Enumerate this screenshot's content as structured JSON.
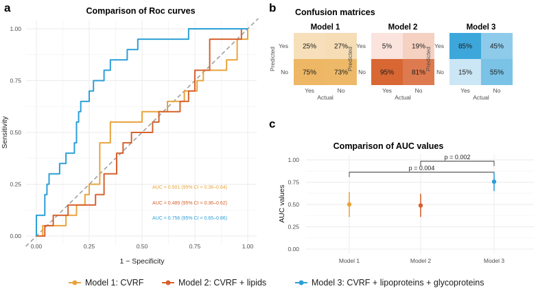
{
  "colors": {
    "model1": "#E8A33A",
    "model2": "#D6602B",
    "model3": "#2A9FD8",
    "diag": "#9e9e9e",
    "cm1": [
      "#FBF3E4",
      "#E8A33A"
    ],
    "cm2": [
      "#FCEBE6",
      "#D6602B"
    ],
    "cm3": [
      "#E9F3FA",
      "#1F9AD6"
    ]
  },
  "panel_letters": {
    "a": "a",
    "b": "b",
    "c": "c"
  },
  "legend": [
    {
      "key": "model1",
      "label": "Model 1: CVRF"
    },
    {
      "key": "model2",
      "label": "Model 2: CVRF + lipids"
    },
    {
      "key": "model3",
      "label": "Model 3: CVRF + lipoproteins + glycoproteins"
    }
  ],
  "chart_data": [
    {
      "type": "line",
      "title": "Comparison of Roc curves",
      "xlabel": "1 − Specificity",
      "ylabel": "Sensitivity",
      "xlim": [
        0,
        1
      ],
      "ylim": [
        0,
        1
      ],
      "xticks": [
        "0.00",
        "0.25",
        "0.50",
        "0.75",
        "1.00"
      ],
      "yticks": [
        "0.00",
        "0.25",
        "0.50",
        "0.75",
        "1.00"
      ],
      "diagonal": true,
      "series": [
        {
          "name": "Model 1",
          "color_key": "model1",
          "points": [
            [
              0,
              0
            ],
            [
              0.03,
              0
            ],
            [
              0.03,
              0.05
            ],
            [
              0.14,
              0.05
            ],
            [
              0.14,
              0.1
            ],
            [
              0.19,
              0.1
            ],
            [
              0.19,
              0.15
            ],
            [
              0.23,
              0.15
            ],
            [
              0.23,
              0.2
            ],
            [
              0.25,
              0.2
            ],
            [
              0.25,
              0.25
            ],
            [
              0.3,
              0.25
            ],
            [
              0.3,
              0.45
            ],
            [
              0.35,
              0.45
            ],
            [
              0.35,
              0.55
            ],
            [
              0.5,
              0.55
            ],
            [
              0.5,
              0.6
            ],
            [
              0.62,
              0.6
            ],
            [
              0.62,
              0.65
            ],
            [
              0.7,
              0.65
            ],
            [
              0.7,
              0.7
            ],
            [
              0.76,
              0.7
            ],
            [
              0.76,
              0.75
            ],
            [
              0.79,
              0.75
            ],
            [
              0.79,
              0.8
            ],
            [
              0.9,
              0.8
            ],
            [
              0.9,
              0.85
            ],
            [
              0.95,
              0.85
            ],
            [
              0.95,
              0.95
            ],
            [
              1.0,
              0.95
            ],
            [
              1.0,
              1.0
            ]
          ]
        },
        {
          "name": "Model 2",
          "color_key": "model2",
          "points": [
            [
              0,
              0
            ],
            [
              0.04,
              0
            ],
            [
              0.04,
              0.05
            ],
            [
              0.08,
              0.05
            ],
            [
              0.08,
              0.1
            ],
            [
              0.15,
              0.1
            ],
            [
              0.15,
              0.15
            ],
            [
              0.28,
              0.15
            ],
            [
              0.28,
              0.2
            ],
            [
              0.32,
              0.2
            ],
            [
              0.32,
              0.3
            ],
            [
              0.38,
              0.3
            ],
            [
              0.38,
              0.4
            ],
            [
              0.41,
              0.4
            ],
            [
              0.41,
              0.45
            ],
            [
              0.45,
              0.45
            ],
            [
              0.45,
              0.5
            ],
            [
              0.55,
              0.5
            ],
            [
              0.55,
              0.55
            ],
            [
              0.58,
              0.55
            ],
            [
              0.58,
              0.6
            ],
            [
              0.68,
              0.6
            ],
            [
              0.68,
              0.65
            ],
            [
              0.72,
              0.65
            ],
            [
              0.72,
              0.7
            ],
            [
              0.75,
              0.7
            ],
            [
              0.75,
              0.8
            ],
            [
              0.82,
              0.8
            ],
            [
              0.82,
              0.95
            ],
            [
              0.97,
              0.95
            ],
            [
              0.97,
              1.0
            ],
            [
              1.0,
              1.0
            ]
          ]
        },
        {
          "name": "Model 3",
          "color_key": "model3",
          "points": [
            [
              0,
              0
            ],
            [
              0,
              0.1
            ],
            [
              0.04,
              0.1
            ],
            [
              0.04,
              0.2
            ],
            [
              0.05,
              0.2
            ],
            [
              0.05,
              0.25
            ],
            [
              0.06,
              0.25
            ],
            [
              0.06,
              0.3
            ],
            [
              0.11,
              0.3
            ],
            [
              0.11,
              0.35
            ],
            [
              0.14,
              0.35
            ],
            [
              0.14,
              0.4
            ],
            [
              0.18,
              0.4
            ],
            [
              0.18,
              0.45
            ],
            [
              0.19,
              0.45
            ],
            [
              0.19,
              0.55
            ],
            [
              0.2,
              0.55
            ],
            [
              0.2,
              0.6
            ],
            [
              0.21,
              0.6
            ],
            [
              0.21,
              0.65
            ],
            [
              0.25,
              0.65
            ],
            [
              0.25,
              0.7
            ],
            [
              0.27,
              0.7
            ],
            [
              0.27,
              0.75
            ],
            [
              0.32,
              0.75
            ],
            [
              0.32,
              0.8
            ],
            [
              0.35,
              0.8
            ],
            [
              0.35,
              0.85
            ],
            [
              0.43,
              0.85
            ],
            [
              0.43,
              0.9
            ],
            [
              0.48,
              0.9
            ],
            [
              0.48,
              0.95
            ],
            [
              0.72,
              0.95
            ],
            [
              0.72,
              1.0
            ],
            [
              1.0,
              1.0
            ]
          ]
        }
      ],
      "annotations": [
        {
          "color_key": "model1",
          "text": "AUC = 0.501 (95% CI = 0.36–0.64)"
        },
        {
          "color_key": "model2",
          "text": "AUC = 0.489 (95% CI = 0.36–0.62)"
        },
        {
          "color_key": "model3",
          "text": "AUC = 0.756 (95% CI = 0.65–0.86)"
        }
      ]
    },
    {
      "type": "heatmap",
      "title": "Confusion matrices",
      "xlabel": "Actual",
      "ylabel": "Predicted",
      "row_labels": [
        "Yes",
        "No"
      ],
      "col_labels": [
        "Yes",
        "No"
      ],
      "matrices": [
        {
          "name": "Model 1",
          "palette": "cm1",
          "cells": [
            [
              25,
              27
            ],
            [
              75,
              73
            ]
          ],
          "labels": [
            [
              "25%",
              "27%"
            ],
            [
              "75%",
              "73%"
            ]
          ]
        },
        {
          "name": "Model 2",
          "palette": "cm2",
          "cells": [
            [
              5,
              19
            ],
            [
              95,
              81
            ]
          ],
          "labels": [
            [
              "5%",
              "19%"
            ],
            [
              "95%",
              "81%"
            ]
          ]
        },
        {
          "name": "Model 3",
          "palette": "cm3",
          "cells": [
            [
              85,
              45
            ],
            [
              15,
              55
            ]
          ],
          "labels": [
            [
              "85%",
              "45%"
            ],
            [
              "15%",
              "55%"
            ]
          ]
        }
      ]
    },
    {
      "type": "scatter",
      "title": "Comparison of AUC values",
      "xlabel": "",
      "ylabel": "AUC values",
      "ylim": [
        0,
        1
      ],
      "yticks": [
        "0.00",
        "0.25",
        "0.50",
        "0.75",
        "1.00"
      ],
      "categories": [
        "Model 1",
        "Model 2",
        "Model 3"
      ],
      "points": [
        {
          "category": "Model 1",
          "color_key": "model1",
          "auc": 0.501,
          "lo": 0.36,
          "hi": 0.64
        },
        {
          "category": "Model 2",
          "color_key": "model2",
          "auc": 0.489,
          "lo": 0.36,
          "hi": 0.62
        },
        {
          "category": "Model 3",
          "color_key": "model3",
          "auc": 0.756,
          "lo": 0.65,
          "hi": 0.86
        }
      ],
      "brackets": [
        {
          "from": "Model 2",
          "to": "Model 3",
          "label": "p = 0.002"
        },
        {
          "from": "Model 1",
          "to": "Model 3",
          "label": "p = 0.004"
        }
      ]
    }
  ]
}
